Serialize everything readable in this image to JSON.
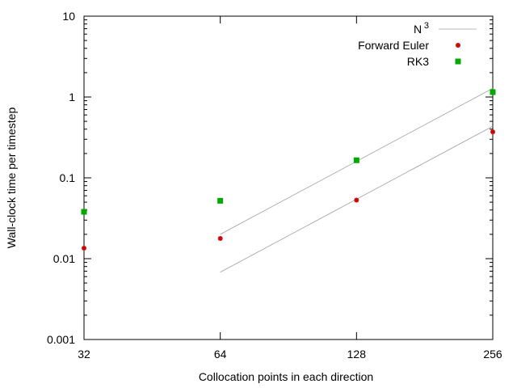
{
  "chart_data": {
    "type": "scatter",
    "xlabel": "Collocation points in each direction",
    "ylabel": "Wall-clock time per timestep",
    "x_scale": "log2",
    "y_scale": "log10",
    "xlim": [
      32,
      256
    ],
    "ylim": [
      0.001,
      10
    ],
    "x_ticks": [
      32,
      64,
      128,
      256
    ],
    "x_tick_labels": [
      "32",
      "64",
      "128",
      "256"
    ],
    "y_ticks": [
      0.001,
      0.01,
      0.1,
      1,
      10
    ],
    "y_tick_labels": [
      "0.001",
      "0.01",
      "0.1",
      "1",
      "10"
    ],
    "grid": false,
    "legend_position": "top-right",
    "series": [
      {
        "name": "N",
        "name_superscript": "3",
        "kind": "reference-line",
        "color": "#a0a0a0",
        "segments": [
          [
            [
              64,
              0.02
            ],
            [
              256,
              1.28
            ]
          ],
          [
            [
              64,
              0.0068
            ],
            [
              256,
              0.435
            ]
          ]
        ]
      },
      {
        "name": "Forward Euler",
        "kind": "points",
        "marker": "star",
        "color": "#cc0000",
        "x": [
          32,
          64,
          128,
          256
        ],
        "y": [
          0.0135,
          0.0178,
          0.053,
          0.37
        ]
      },
      {
        "name": "RK3",
        "kind": "points",
        "marker": "square",
        "color": "#00aa00",
        "x": [
          32,
          64,
          128,
          256
        ],
        "y": [
          0.038,
          0.052,
          0.165,
          1.15
        ]
      }
    ]
  }
}
